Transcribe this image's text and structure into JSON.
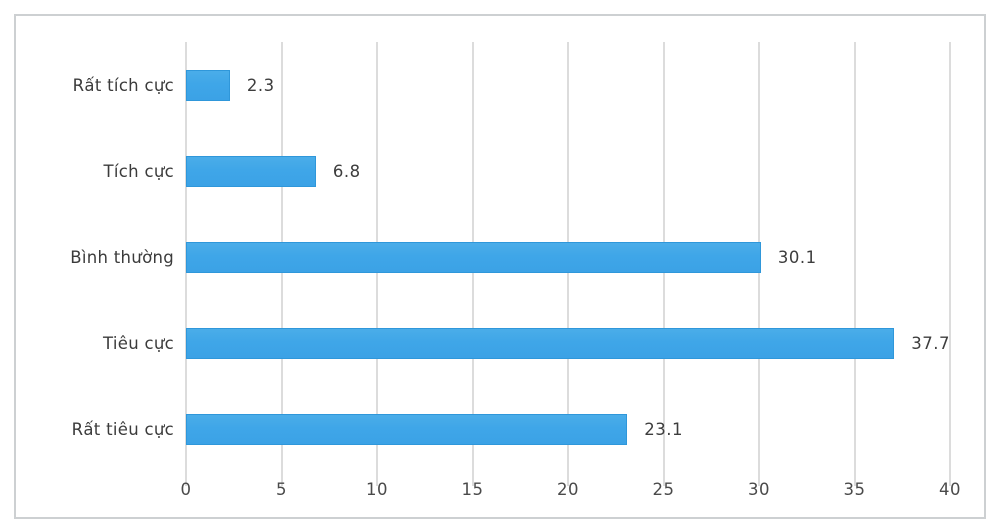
{
  "chart_data": {
    "type": "bar",
    "orientation": "horizontal",
    "title": "",
    "xlabel": "",
    "ylabel": "",
    "categories": [
      "Rất tích cực",
      "Tích cực",
      "Bình thường",
      "Tiêu cực",
      "Rất tiêu cực"
    ],
    "values": [
      2.3,
      6.8,
      30.1,
      37.7,
      23.1
    ],
    "value_labels": [
      "2.3",
      "6.8",
      "30.1",
      "37.7",
      "23.1"
    ],
    "x_ticks": [
      0,
      5,
      10,
      15,
      20,
      25,
      30,
      35,
      40
    ],
    "xlim": [
      0,
      40
    ],
    "grid": true,
    "legend": "none",
    "colors": {
      "bar_fill": "#3fa6e8",
      "bar_border": "#2f97da",
      "gridline": "#dcdcdc",
      "frame_border": "#cdd0d2",
      "text": "#3d3d3d",
      "background": "#ffffff"
    }
  }
}
